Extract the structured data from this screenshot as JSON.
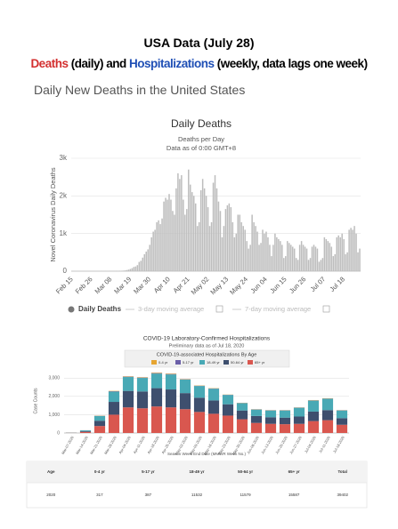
{
  "header": {
    "title": "USA Data (July 28)",
    "subtitle": [
      "Deaths",
      " (daily) and ",
      "Hospitalizations",
      " (weekly, data lags one week)"
    ],
    "section": "Daily New Deaths in the United States"
  },
  "chart_data": [
    {
      "type": "bar",
      "title": "Daily Deaths",
      "subtitle": [
        "Deaths per Day",
        "Data as of 0:00 GMT+8"
      ],
      "y_label": "Novel Coronavirus Daily Deaths",
      "categories": [
        "Feb 15",
        null,
        null,
        null,
        null,
        null,
        null,
        null,
        null,
        null,
        null,
        "Feb 26",
        null,
        null,
        null,
        null,
        null,
        null,
        null,
        null,
        null,
        null,
        "Mar 08",
        null,
        null,
        null,
        null,
        null,
        null,
        null,
        null,
        null,
        null,
        "Mar 19",
        null,
        null,
        null,
        null,
        null,
        null,
        null,
        null,
        null,
        null,
        "Mar 30",
        null,
        null,
        null,
        null,
        null,
        null,
        null,
        null,
        null,
        null,
        "Apr 10",
        null,
        null,
        null,
        null,
        null,
        null,
        null,
        null,
        null,
        null,
        "Apr 21",
        null,
        null,
        null,
        null,
        null,
        null,
        null,
        null,
        null,
        null,
        "May 02",
        null,
        null,
        null,
        null,
        null,
        null,
        null,
        null,
        null,
        null,
        "May 13",
        null,
        null,
        null,
        null,
        null,
        null,
        null,
        null,
        null,
        null,
        "May 24",
        null,
        null,
        null,
        null,
        null,
        null,
        null,
        null,
        null,
        null,
        "Jun 04",
        null,
        null,
        null,
        null,
        null,
        null,
        null,
        null,
        null,
        null,
        "Jun 15",
        null,
        null,
        null,
        null,
        null,
        null,
        null,
        null,
        null,
        null,
        "Jun 26",
        null,
        null,
        null,
        null,
        null,
        null,
        null,
        null,
        null,
        null,
        "Jul 07",
        null,
        null,
        null,
        null,
        null,
        null,
        null,
        null,
        null,
        null,
        "Jul 18",
        null,
        null,
        null,
        null,
        null,
        null,
        null,
        null,
        null
      ],
      "series": [
        {
          "name": "Daily Deaths",
          "color": "#bdbdbd",
          "values": [
            0,
            0,
            0,
            0,
            0,
            0,
            0,
            0,
            0,
            0,
            0,
            0,
            0,
            0,
            0,
            1,
            0,
            2,
            1,
            2,
            1,
            3,
            4,
            3,
            5,
            8,
            7,
            10,
            12,
            15,
            20,
            30,
            42,
            58,
            80,
            112,
            125,
            160,
            245,
            275,
            360,
            450,
            520,
            580,
            700,
            900,
            1050,
            1100,
            1300,
            1350,
            1250,
            1400,
            1850,
            1950,
            1900,
            2050,
            1900,
            1600,
            1500,
            2200,
            2600,
            2450,
            2550,
            1900,
            1500,
            1650,
            2700,
            2300,
            2100,
            2000,
            1800,
            1200,
            1300,
            2150,
            2450,
            2200,
            2000,
            1700,
            1200,
            1300,
            2350,
            2550,
            2200,
            1850,
            1600,
            900,
            1200,
            1650,
            1750,
            1800,
            1700,
            1300,
            900,
            1000,
            1500,
            1500,
            1300,
            1200,
            1100,
            800,
            600,
            700,
            1500,
            1300,
            1200,
            1050,
            700,
            750,
            1100,
            1000,
            1050,
            900,
            700,
            400,
            700,
            1000,
            900,
            850,
            800,
            700,
            350,
            400,
            800,
            750,
            700,
            650,
            600,
            350,
            300,
            700,
            800,
            700,
            650,
            600,
            300,
            350,
            650,
            700,
            650,
            600,
            250,
            300,
            350,
            900,
            850,
            800,
            750,
            650,
            400,
            450,
            900,
            950,
            900,
            1000,
            850,
            450,
            500,
            1100,
            1150,
            1100,
            1200,
            1000,
            500,
            600
          ]
        }
      ],
      "inactive_legend": [
        "3-day moving average",
        "7-day moving average"
      ],
      "ylim": [
        0,
        3000
      ],
      "yticks": [
        0,
        {
          "value": 1000,
          "label": "1k"
        },
        {
          "value": 2000,
          "label": "2k"
        },
        {
          "value": 3000,
          "label": "3k"
        }
      ],
      "grid": true
    },
    {
      "type": "stacked_bar",
      "title": "COVID-19 Laboratory-Confirmed Hospitalizations",
      "subtitle": "Preliminary data as of Jul 18, 2020",
      "legend_title": "COVID-19-associated Hospitalizations By Age",
      "y_label": "Case Counts",
      "x_label": "Season Week End Date (MMWR Week No.)",
      "categories": [
        "Mar-07-2020",
        "Mar-14-2020",
        "Mar-21-2020",
        "Mar-28-2020",
        "Apr-04-2020",
        "Apr-11-2020",
        "Apr-18-2020",
        "Apr-25-2020",
        "May-02-2020",
        "May-09-2020",
        "May-16-2020",
        "May-23-2020",
        "May-30-2020",
        "Jun-06-2020",
        "Jun-13-2020",
        "Jun-20-2020",
        "Jun-27-2020",
        "Jul-04-2020",
        "Jul-11-2020",
        "Jul-18-2020"
      ],
      "series": [
        {
          "name": "0-4 yr",
          "color": "#e6a532",
          "values": [
            1,
            2,
            10,
            20,
            20,
            20,
            25,
            25,
            15,
            15,
            15,
            10,
            10,
            10,
            10,
            10,
            10,
            15,
            15,
            10
          ]
        },
        {
          "name": "5-17 yr",
          "color": "#6b5fa8",
          "values": [
            0,
            3,
            10,
            20,
            20,
            20,
            25,
            25,
            15,
            15,
            15,
            10,
            10,
            10,
            10,
            10,
            10,
            15,
            15,
            10
          ]
        },
        {
          "name": "18-49 yr",
          "color": "#48a9b5",
          "values": [
            5,
            40,
            260,
            560,
            760,
            740,
            800,
            820,
            740,
            640,
            640,
            510,
            400,
            350,
            370,
            390,
            480,
            600,
            620,
            420
          ]
        },
        {
          "name": "50-64 yr",
          "color": "#3e4f6e",
          "values": [
            6,
            45,
            290,
            700,
            900,
            920,
            1000,
            980,
            880,
            780,
            730,
            620,
            480,
            380,
            360,
            360,
            400,
            520,
            550,
            360
          ]
        },
        {
          "name": "65+ yr",
          "color": "#d9574f",
          "values": [
            8,
            60,
            380,
            1000,
            1400,
            1350,
            1450,
            1400,
            1300,
            1150,
            1050,
            950,
            750,
            550,
            500,
            480,
            500,
            650,
            700,
            450
          ]
        }
      ],
      "ylim": [
        0,
        3500
      ],
      "yticks": [
        0,
        {
          "value": 1000,
          "label": "1,000"
        },
        {
          "value": 2000,
          "label": "2,000"
        },
        {
          "value": 3000,
          "label": "3,000"
        }
      ],
      "grid": true
    }
  ],
  "table": {
    "header": [
      "Age",
      "0-4 yr",
      "5-17 yr",
      "18-49 yr",
      "50-64 yr",
      "65+ yr",
      "Total"
    ],
    "rows": [
      [
        "2020",
        "317",
        "387",
        "11532",
        "11579",
        "15587",
        "39402"
      ]
    ]
  }
}
